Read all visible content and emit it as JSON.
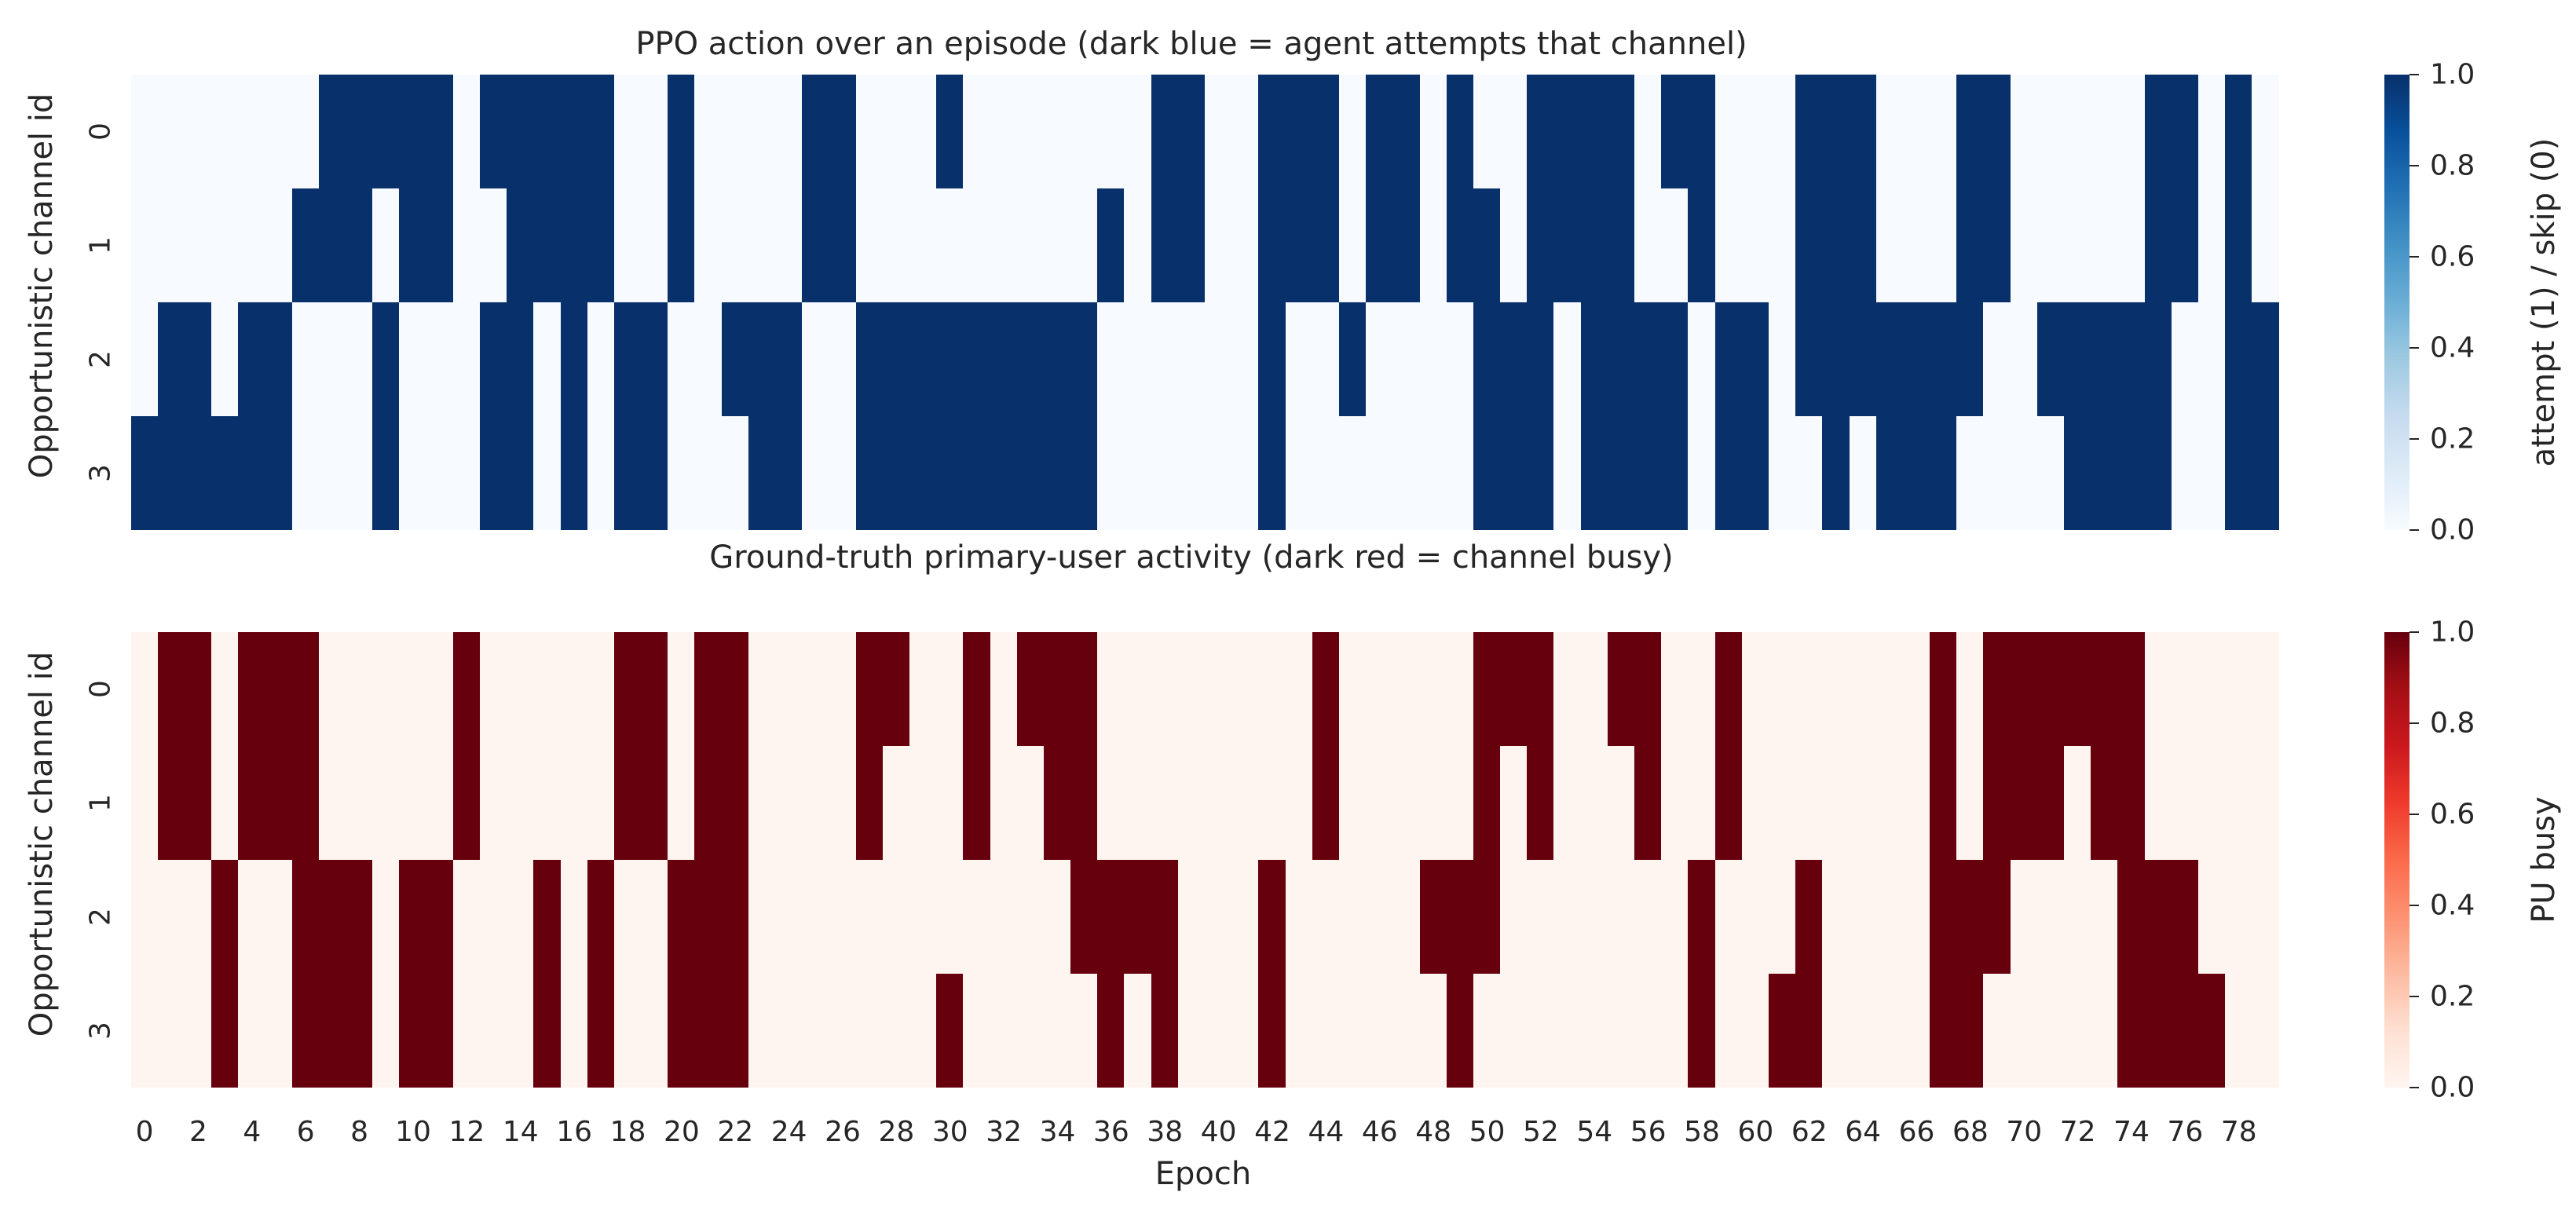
{
  "chart_data": [
    {
      "type": "heatmap",
      "title": "PPO action over an episode (dark blue = agent attempts that channel)",
      "ylabel": "Opportunistic channel id",
      "xlabel": "",
      "y_categories": [
        "0",
        "1",
        "2",
        "3"
      ],
      "x_range": [
        0,
        79
      ],
      "colormap": "Blues",
      "value_range": [
        0,
        1
      ],
      "colorbar_label": "attempt (1) / skip (0)",
      "colorbar_ticks": [
        "0.0",
        "0.2",
        "0.4",
        "0.6",
        "0.8",
        "1.0"
      ],
      "colors": {
        "low": "#f7fbff",
        "high": "#08306b"
      },
      "z": [
        [
          0,
          0,
          0,
          0,
          0,
          0,
          0,
          1,
          1,
          1,
          1,
          1,
          0,
          1,
          1,
          1,
          1,
          1,
          0,
          0,
          1,
          0,
          0,
          0,
          0,
          1,
          1,
          0,
          0,
          0,
          1,
          0,
          0,
          0,
          0,
          0,
          0,
          0,
          1,
          1,
          0,
          0,
          1,
          1,
          1,
          0,
          1,
          1,
          0,
          1,
          0,
          0,
          1,
          1,
          1,
          1,
          0,
          1,
          1,
          0,
          0,
          0,
          1,
          1,
          1,
          0,
          0,
          0,
          1,
          1,
          0,
          0,
          0,
          0,
          0,
          1,
          1,
          0,
          1,
          0
        ],
        [
          0,
          0,
          0,
          0,
          0,
          0,
          1,
          1,
          1,
          0,
          1,
          1,
          0,
          0,
          1,
          1,
          1,
          1,
          0,
          0,
          1,
          0,
          0,
          0,
          0,
          1,
          1,
          0,
          0,
          0,
          0,
          0,
          0,
          0,
          0,
          0,
          1,
          0,
          1,
          1,
          0,
          0,
          1,
          1,
          1,
          0,
          1,
          1,
          0,
          1,
          1,
          0,
          1,
          1,
          1,
          1,
          0,
          0,
          1,
          0,
          0,
          0,
          1,
          1,
          1,
          0,
          0,
          0,
          1,
          1,
          0,
          0,
          0,
          0,
          0,
          1,
          1,
          0,
          1,
          0
        ],
        [
          0,
          1,
          1,
          0,
          1,
          1,
          0,
          0,
          0,
          1,
          0,
          0,
          0,
          1,
          1,
          0,
          1,
          0,
          1,
          1,
          0,
          0,
          1,
          1,
          1,
          0,
          0,
          1,
          1,
          1,
          1,
          1,
          1,
          1,
          1,
          1,
          0,
          0,
          0,
          0,
          0,
          0,
          1,
          0,
          0,
          1,
          0,
          0,
          0,
          0,
          1,
          1,
          1,
          0,
          1,
          1,
          1,
          1,
          0,
          1,
          1,
          0,
          1,
          1,
          1,
          1,
          1,
          1,
          1,
          0,
          0,
          1,
          1,
          1,
          1,
          1,
          0,
          0,
          1,
          1
        ],
        [
          1,
          1,
          1,
          1,
          1,
          1,
          0,
          0,
          0,
          1,
          0,
          0,
          0,
          1,
          1,
          0,
          1,
          0,
          1,
          1,
          0,
          0,
          0,
          1,
          1,
          0,
          0,
          1,
          1,
          1,
          1,
          1,
          1,
          1,
          1,
          1,
          0,
          0,
          0,
          0,
          0,
          0,
          1,
          0,
          0,
          0,
          0,
          0,
          0,
          0,
          1,
          1,
          1,
          0,
          1,
          1,
          1,
          1,
          0,
          1,
          1,
          0,
          0,
          1,
          0,
          1,
          1,
          1,
          0,
          0,
          0,
          0,
          1,
          1,
          1,
          1,
          0,
          0,
          1,
          1
        ]
      ]
    },
    {
      "type": "heatmap",
      "title": "Ground-truth primary-user activity (dark red = channel busy)",
      "ylabel": "Opportunistic channel id",
      "xlabel": "Epoch",
      "y_categories": [
        "0",
        "1",
        "2",
        "3"
      ],
      "x_categories": [
        "0",
        "2",
        "4",
        "6",
        "8",
        "10",
        "12",
        "14",
        "16",
        "18",
        "20",
        "22",
        "24",
        "26",
        "28",
        "30",
        "32",
        "34",
        "36",
        "38",
        "40",
        "42",
        "44",
        "46",
        "48",
        "50",
        "52",
        "54",
        "56",
        "58",
        "60",
        "62",
        "64",
        "66",
        "68",
        "70",
        "72",
        "74",
        "76",
        "78"
      ],
      "x_range": [
        0,
        79
      ],
      "colormap": "Reds",
      "value_range": [
        0,
        1
      ],
      "colorbar_label": "PU busy",
      "colorbar_ticks": [
        "0.0",
        "0.2",
        "0.4",
        "0.6",
        "0.8",
        "1.0"
      ],
      "colors": {
        "low": "#fff5f0",
        "high": "#67000d"
      },
      "z": [
        [
          0,
          1,
          1,
          0,
          1,
          1,
          1,
          0,
          0,
          0,
          0,
          0,
          1,
          0,
          0,
          0,
          0,
          0,
          1,
          1,
          0,
          1,
          1,
          0,
          0,
          0,
          0,
          1,
          1,
          0,
          0,
          1,
          0,
          1,
          1,
          1,
          0,
          0,
          0,
          0,
          0,
          0,
          0,
          0,
          1,
          0,
          0,
          0,
          0,
          0,
          1,
          1,
          1,
          0,
          0,
          1,
          1,
          0,
          0,
          1,
          0,
          0,
          0,
          0,
          0,
          0,
          0,
          1,
          0,
          1,
          1,
          1,
          1,
          1,
          1,
          0,
          0,
          0,
          0,
          0
        ],
        [
          0,
          1,
          1,
          0,
          1,
          1,
          1,
          0,
          0,
          0,
          0,
          0,
          1,
          0,
          0,
          0,
          0,
          0,
          1,
          1,
          0,
          1,
          1,
          0,
          0,
          0,
          0,
          1,
          0,
          0,
          0,
          1,
          0,
          0,
          1,
          1,
          0,
          0,
          0,
          0,
          0,
          0,
          0,
          0,
          1,
          0,
          0,
          0,
          0,
          0,
          1,
          0,
          1,
          0,
          0,
          0,
          1,
          0,
          0,
          1,
          0,
          0,
          0,
          0,
          0,
          0,
          0,
          1,
          0,
          1,
          1,
          1,
          0,
          1,
          1,
          0,
          0,
          0,
          0,
          0
        ],
        [
          0,
          0,
          0,
          1,
          0,
          0,
          1,
          1,
          1,
          0,
          1,
          1,
          0,
          0,
          0,
          1,
          0,
          1,
          0,
          0,
          1,
          1,
          1,
          0,
          0,
          0,
          0,
          0,
          0,
          0,
          0,
          0,
          0,
          0,
          0,
          1,
          1,
          1,
          1,
          0,
          0,
          0,
          1,
          0,
          0,
          0,
          0,
          0,
          1,
          1,
          1,
          0,
          0,
          0,
          0,
          0,
          0,
          0,
          1,
          0,
          0,
          0,
          1,
          0,
          0,
          0,
          0,
          1,
          1,
          1,
          0,
          0,
          0,
          0,
          1,
          1,
          1,
          0,
          0,
          0
        ],
        [
          0,
          0,
          0,
          1,
          0,
          0,
          1,
          1,
          1,
          0,
          1,
          1,
          0,
          0,
          0,
          1,
          0,
          1,
          0,
          0,
          1,
          1,
          1,
          0,
          0,
          0,
          0,
          0,
          0,
          0,
          1,
          0,
          0,
          0,
          0,
          0,
          1,
          0,
          1,
          0,
          0,
          0,
          1,
          0,
          0,
          0,
          0,
          0,
          0,
          1,
          0,
          0,
          0,
          0,
          0,
          0,
          0,
          0,
          1,
          0,
          0,
          1,
          1,
          0,
          0,
          0,
          0,
          1,
          1,
          0,
          0,
          0,
          0,
          0,
          1,
          1,
          1,
          1,
          0,
          0
        ]
      ]
    }
  ]
}
